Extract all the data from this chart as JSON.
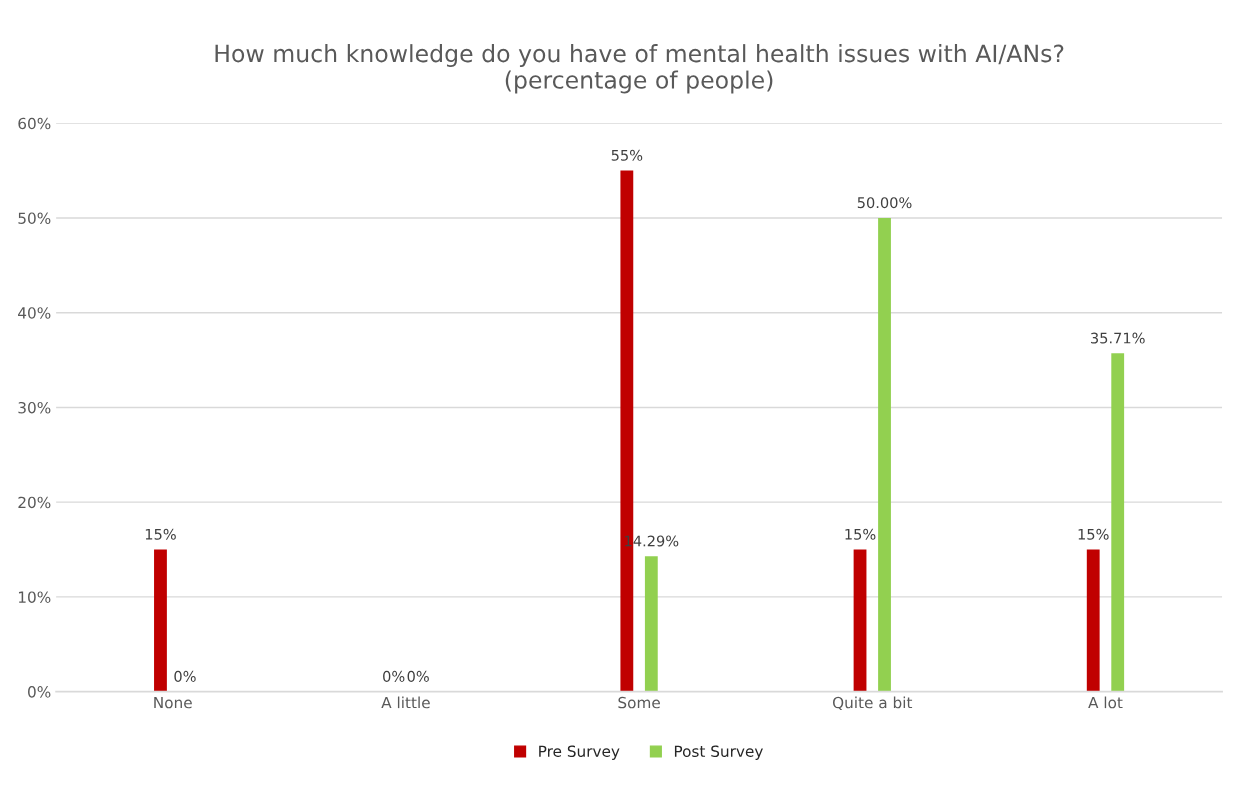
{
  "chart_data": {
    "type": "bar",
    "title": "How much knowledge do you have of mental health issues with AI/ANs?\n(percentage of people)",
    "categories": [
      "None",
      "A little",
      "Some",
      "Quite a bit",
      "A lot"
    ],
    "series": [
      {
        "name": "Pre Survey",
        "color": "#c00000",
        "values": [
          15,
          0,
          55,
          15,
          15
        ],
        "value_labels": [
          "15%",
          "0%",
          "55%",
          "15%",
          "15%"
        ]
      },
      {
        "name": "Post Survey",
        "color": "#92d050",
        "values": [
          0,
          0,
          14.29,
          50,
          35.71
        ],
        "value_labels": [
          "0%",
          "0%",
          "14.29%",
          "50.00%",
          "35.71%"
        ]
      }
    ],
    "ylim": [
      0,
      60
    ],
    "yticks": [
      {
        "value": 0,
        "label": "0%"
      },
      {
        "value": 10,
        "label": "10%"
      },
      {
        "value": 20,
        "label": "20%"
      },
      {
        "value": 30,
        "label": "30%"
      },
      {
        "value": 40,
        "label": "40%"
      },
      {
        "value": 50,
        "label": "50%"
      },
      {
        "value": 60,
        "label": "60%"
      }
    ],
    "grid": "y",
    "legend": "bottom"
  }
}
